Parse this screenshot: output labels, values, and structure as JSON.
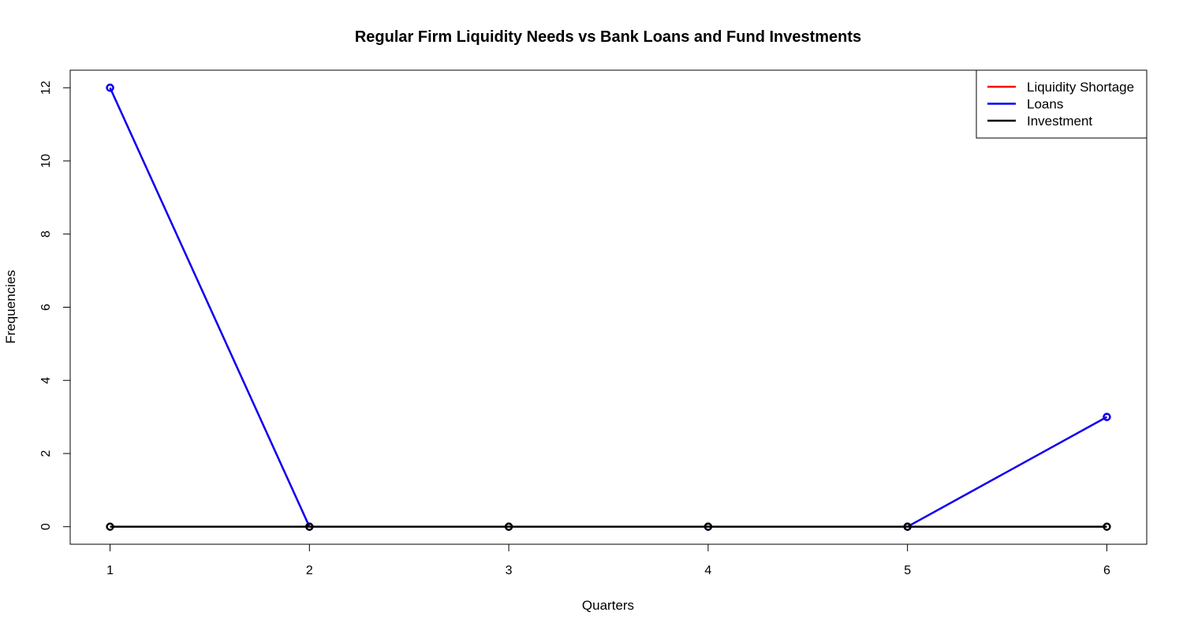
{
  "chart_data": {
    "type": "line",
    "title": "Regular Firm Liquidity Needs vs Bank Loans and Fund Investments",
    "xlabel": "Quarters",
    "ylabel": "Frequencies",
    "x": [
      1,
      2,
      3,
      4,
      5,
      6
    ],
    "xlim": [
      0.8,
      6.2
    ],
    "ylim": [
      -0.48,
      12.48
    ],
    "yticks": [
      0,
      2,
      4,
      6,
      8,
      10,
      12
    ],
    "xticks": [
      1,
      2,
      3,
      4,
      5,
      6
    ],
    "grid": false,
    "legend_position": "top-right",
    "series": [
      {
        "name": "Liquidity Shortage",
        "color": "#ff0000",
        "values": [
          12,
          0,
          0,
          0,
          0,
          3
        ]
      },
      {
        "name": "Loans",
        "color": "#0000ff",
        "values": [
          12,
          0,
          0,
          0,
          0,
          3
        ]
      },
      {
        "name": "Investment",
        "color": "#000000",
        "values": [
          0,
          0,
          0,
          0,
          0,
          0
        ]
      }
    ]
  }
}
